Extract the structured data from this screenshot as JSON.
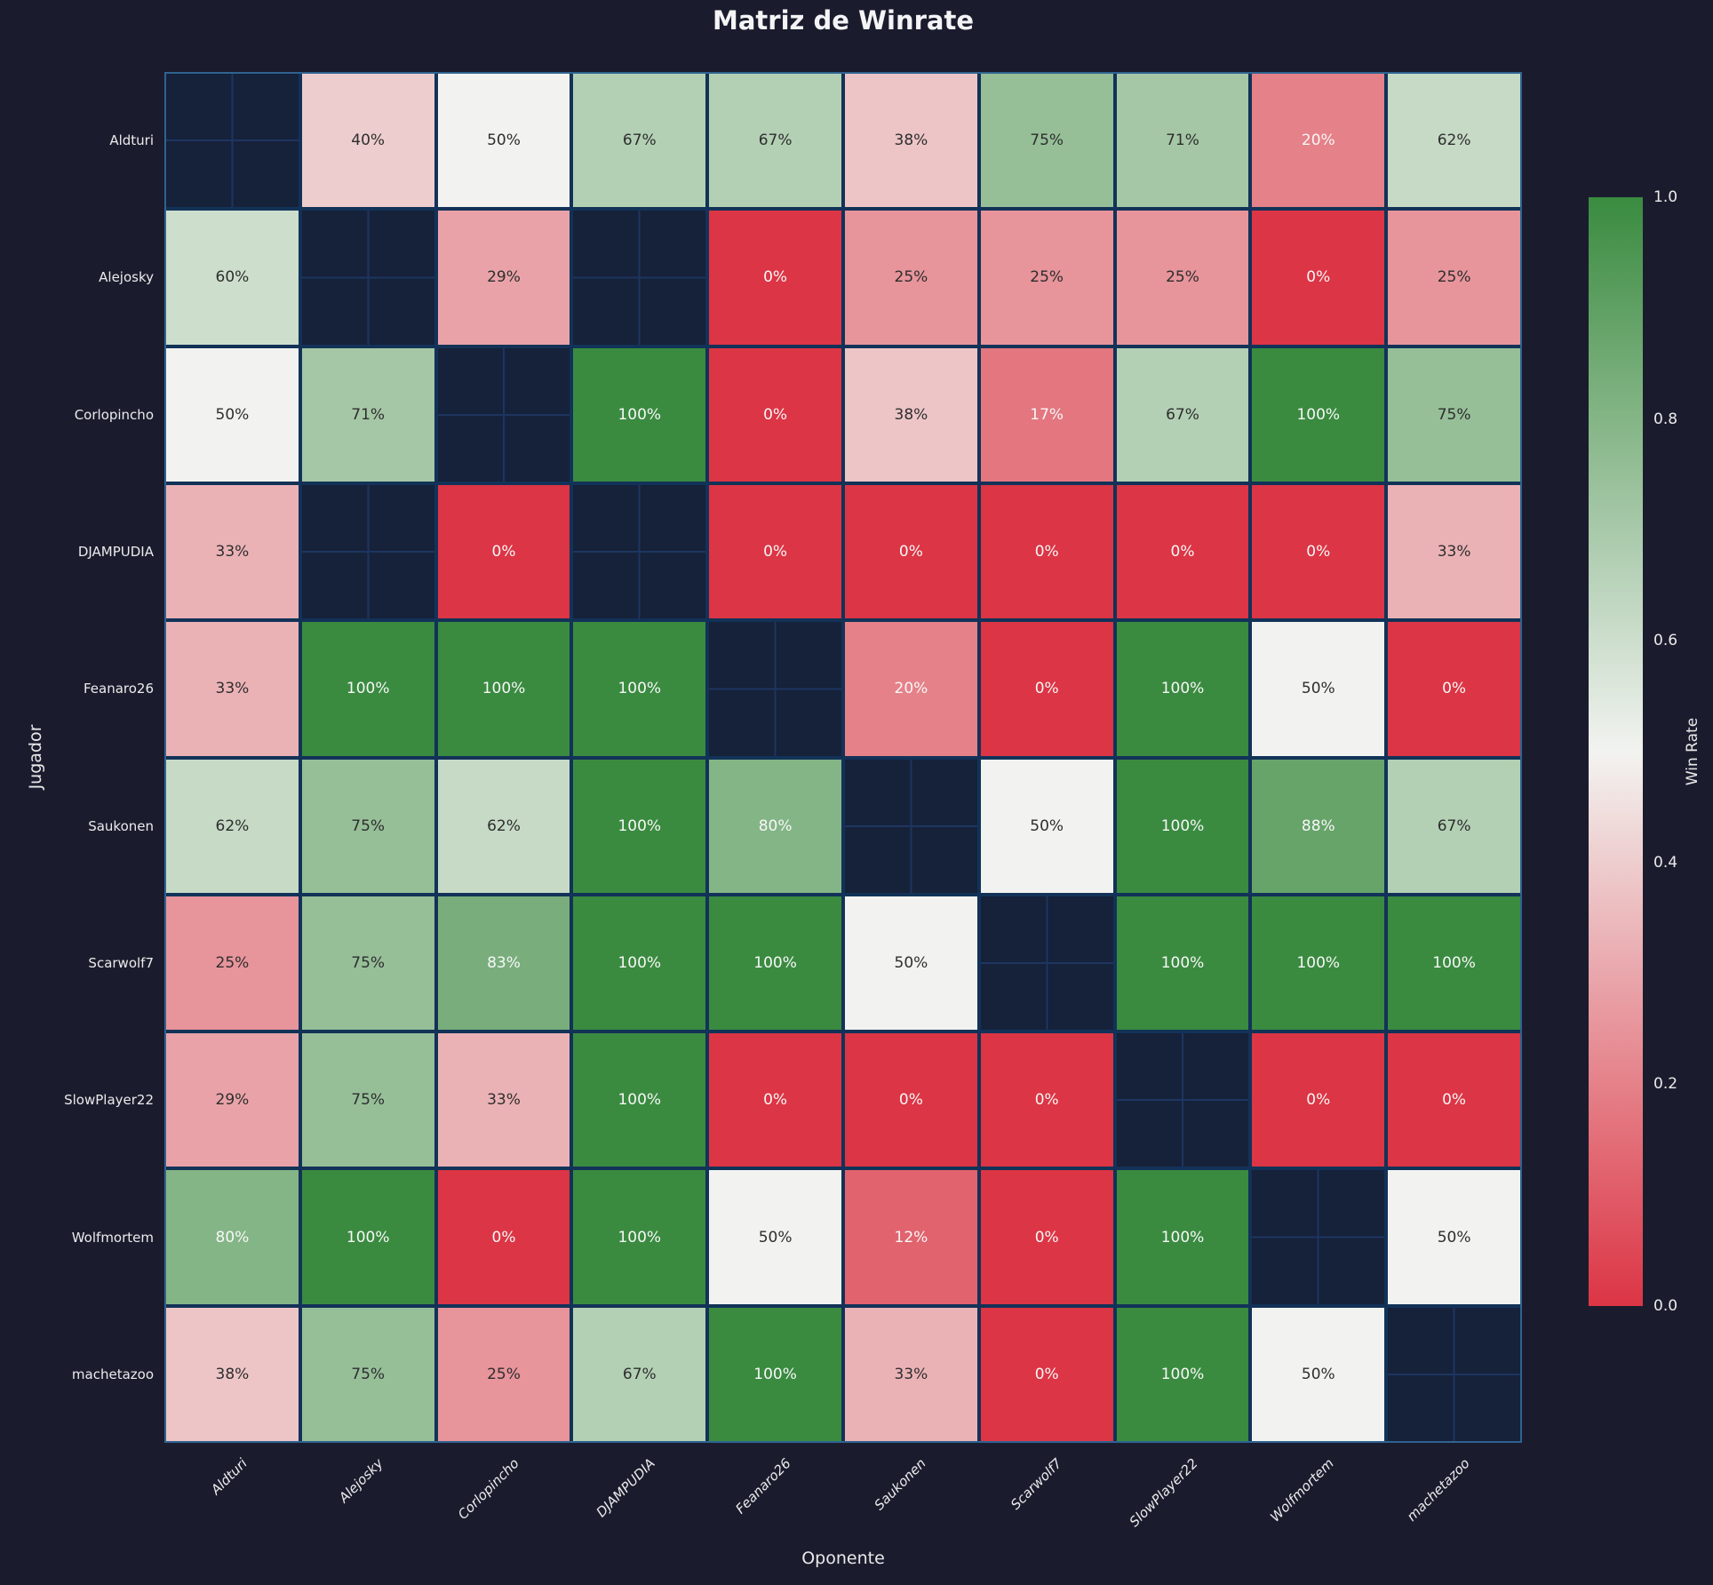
{
  "title": "Matriz de Winrate",
  "axes": {
    "x_label": "Oponente",
    "y_label": "Jugador"
  },
  "colorbar": {
    "label": "Win Rate",
    "ticks": [
      "1.0",
      "0.8",
      "0.6",
      "0.4",
      "0.2",
      "0.0"
    ],
    "range": [
      0.0,
      1.0
    ]
  },
  "theme": {
    "figure_background": "#1a1c2e",
    "missing_cell_background": "#16213a",
    "missing_cell_gridline": "#1d3560",
    "cell_border": "#123258",
    "outer_border": "#2f6390",
    "color_low": "#dc3545",
    "color_mid": "#f2f3f0",
    "color_high": "#3a8b40",
    "annotation_dark_text": "#2e2e2e",
    "annotation_light_text": "#f7f7f7",
    "tick_text": "#ebebeb",
    "title_text": "#f4f4f6"
  },
  "chart_data": {
    "type": "heatmap",
    "title": "Matriz de Winrate",
    "xlabel": "Oponente",
    "ylabel": "Jugador",
    "x_categories": [
      "Aldturi",
      "Alejosky",
      "Corlopincho",
      "DJAMPUDIA",
      "Feanaro26",
      "Saukonen",
      "Scarwolf7",
      "SlowPlayer22",
      "Wolfmortem",
      "machetazoo"
    ],
    "y_categories": [
      "Aldturi",
      "Alejosky",
      "Corlopincho",
      "DJAMPUDIA",
      "Feanaro26",
      "Saukonen",
      "Scarwolf7",
      "SlowPlayer22",
      "Wolfmortem",
      "machetazoo"
    ],
    "values_percent": [
      [
        null,
        40,
        50,
        67,
        67,
        38,
        75,
        71,
        20,
        62
      ],
      [
        60,
        null,
        29,
        null,
        0,
        25,
        25,
        25,
        0,
        25
      ],
      [
        50,
        71,
        null,
        100,
        0,
        38,
        17,
        67,
        100,
        75
      ],
      [
        33,
        null,
        0,
        null,
        0,
        0,
        0,
        0,
        0,
        33
      ],
      [
        33,
        100,
        100,
        100,
        null,
        20,
        0,
        100,
        50,
        0
      ],
      [
        62,
        75,
        62,
        100,
        80,
        null,
        50,
        100,
        88,
        67
      ],
      [
        25,
        75,
        83,
        100,
        100,
        50,
        null,
        100,
        100,
        100
      ],
      [
        29,
        75,
        33,
        100,
        0,
        0,
        0,
        null,
        0,
        0
      ],
      [
        80,
        100,
        0,
        100,
        50,
        12,
        0,
        100,
        null,
        50
      ],
      [
        38,
        75,
        25,
        67,
        100,
        33,
        0,
        100,
        50,
        null
      ]
    ],
    "annotation_format": "{value}%",
    "missing_cells_note": "diagonal and unplayed matchups have no value",
    "colorscale": "red-white-green diverging",
    "zlim": [
      0.0,
      1.0
    ],
    "legend_position": "right",
    "grid": false
  }
}
